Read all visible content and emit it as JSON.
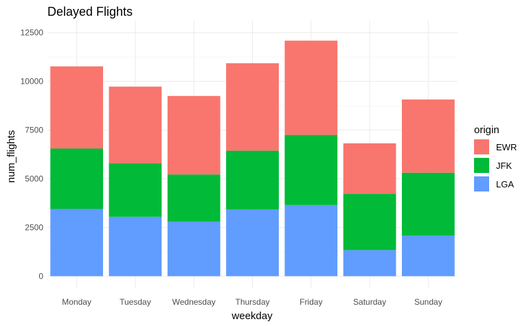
{
  "chart_data": {
    "type": "bar",
    "stacked": true,
    "title": "Delayed Flights",
    "xlabel": "weekday",
    "ylabel": "num_flights",
    "categories": [
      "Monday",
      "Tuesday",
      "Wednesday",
      "Thursday",
      "Friday",
      "Saturday",
      "Sunday"
    ],
    "series": [
      {
        "name": "LGA",
        "color": "#619CFF",
        "values": [
          3450,
          3050,
          2800,
          3420,
          3650,
          1340,
          2080
        ]
      },
      {
        "name": "JFK",
        "color": "#00BA38",
        "values": [
          3100,
          2750,
          2420,
          3020,
          3600,
          2890,
          3230
        ]
      },
      {
        "name": "EWR",
        "color": "#F8766D",
        "values": [
          4220,
          3930,
          4030,
          4490,
          4840,
          2590,
          3760
        ]
      }
    ],
    "ylim": [
      0,
      12500
    ],
    "yticks": [
      0,
      2500,
      5000,
      7500,
      10000,
      12500
    ],
    "ytick_labels": [
      "0",
      "2500",
      "5000",
      "7500",
      "10000",
      "12500"
    ],
    "grid": true,
    "legend": {
      "title": "origin",
      "placement": "right",
      "entries": [
        {
          "name": "EWR",
          "color": "#F8766D"
        },
        {
          "name": "JFK",
          "color": "#00BA38"
        },
        {
          "name": "LGA",
          "color": "#619CFF"
        }
      ]
    }
  }
}
